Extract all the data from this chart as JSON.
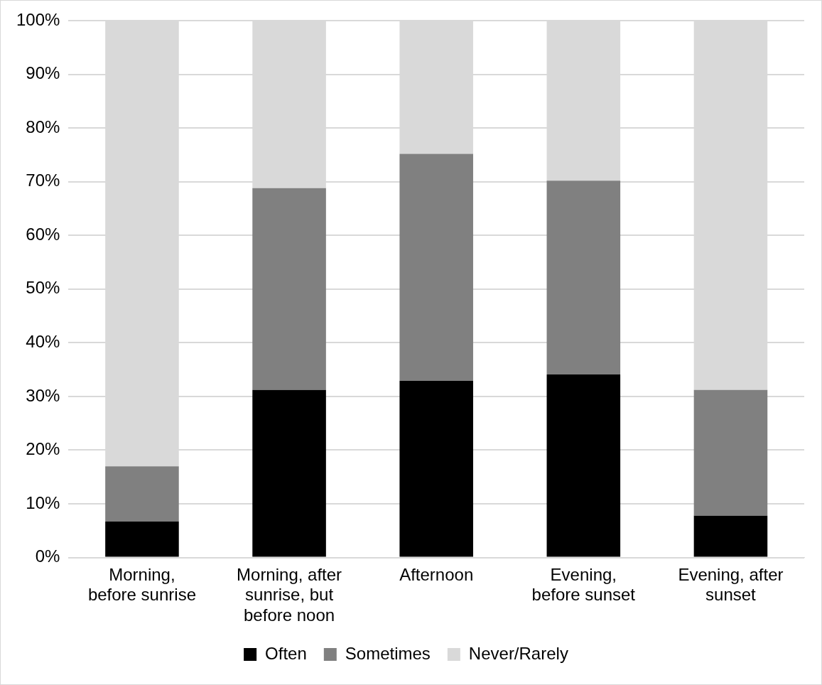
{
  "chart_data": {
    "type": "bar",
    "stacked": true,
    "categories": [
      "Morning, before sunrise",
      "Morning, after sunrise, but before noon",
      "Afternoon",
      "Evening, before sunset",
      "Evening, after sunset"
    ],
    "series": [
      {
        "name": "Often",
        "color": "#000000",
        "values": [
          6.7,
          31.2,
          32.9,
          34.1,
          7.8
        ]
      },
      {
        "name": "Sometimes",
        "color": "#808080",
        "values": [
          10.3,
          37.6,
          42.3,
          36.1,
          23.4
        ]
      },
      {
        "name": "Never/Rarely",
        "color": "#d9d9d9",
        "values": [
          83.0,
          31.2,
          24.8,
          29.8,
          68.8
        ]
      }
    ],
    "ylim": [
      0,
      100
    ],
    "yticks": [
      {
        "value": 0,
        "label": "0%"
      },
      {
        "value": 10,
        "label": "10%"
      },
      {
        "value": 20,
        "label": "20%"
      },
      {
        "value": 30,
        "label": "30%"
      },
      {
        "value": 40,
        "label": "40%"
      },
      {
        "value": 50,
        "label": "50%"
      },
      {
        "value": 60,
        "label": "60%"
      },
      {
        "value": 70,
        "label": "70%"
      },
      {
        "value": 80,
        "label": "80%"
      },
      {
        "value": 90,
        "label": "90%"
      },
      {
        "value": 100,
        "label": "100%"
      }
    ],
    "grid": "y",
    "legend": "bottom"
  }
}
